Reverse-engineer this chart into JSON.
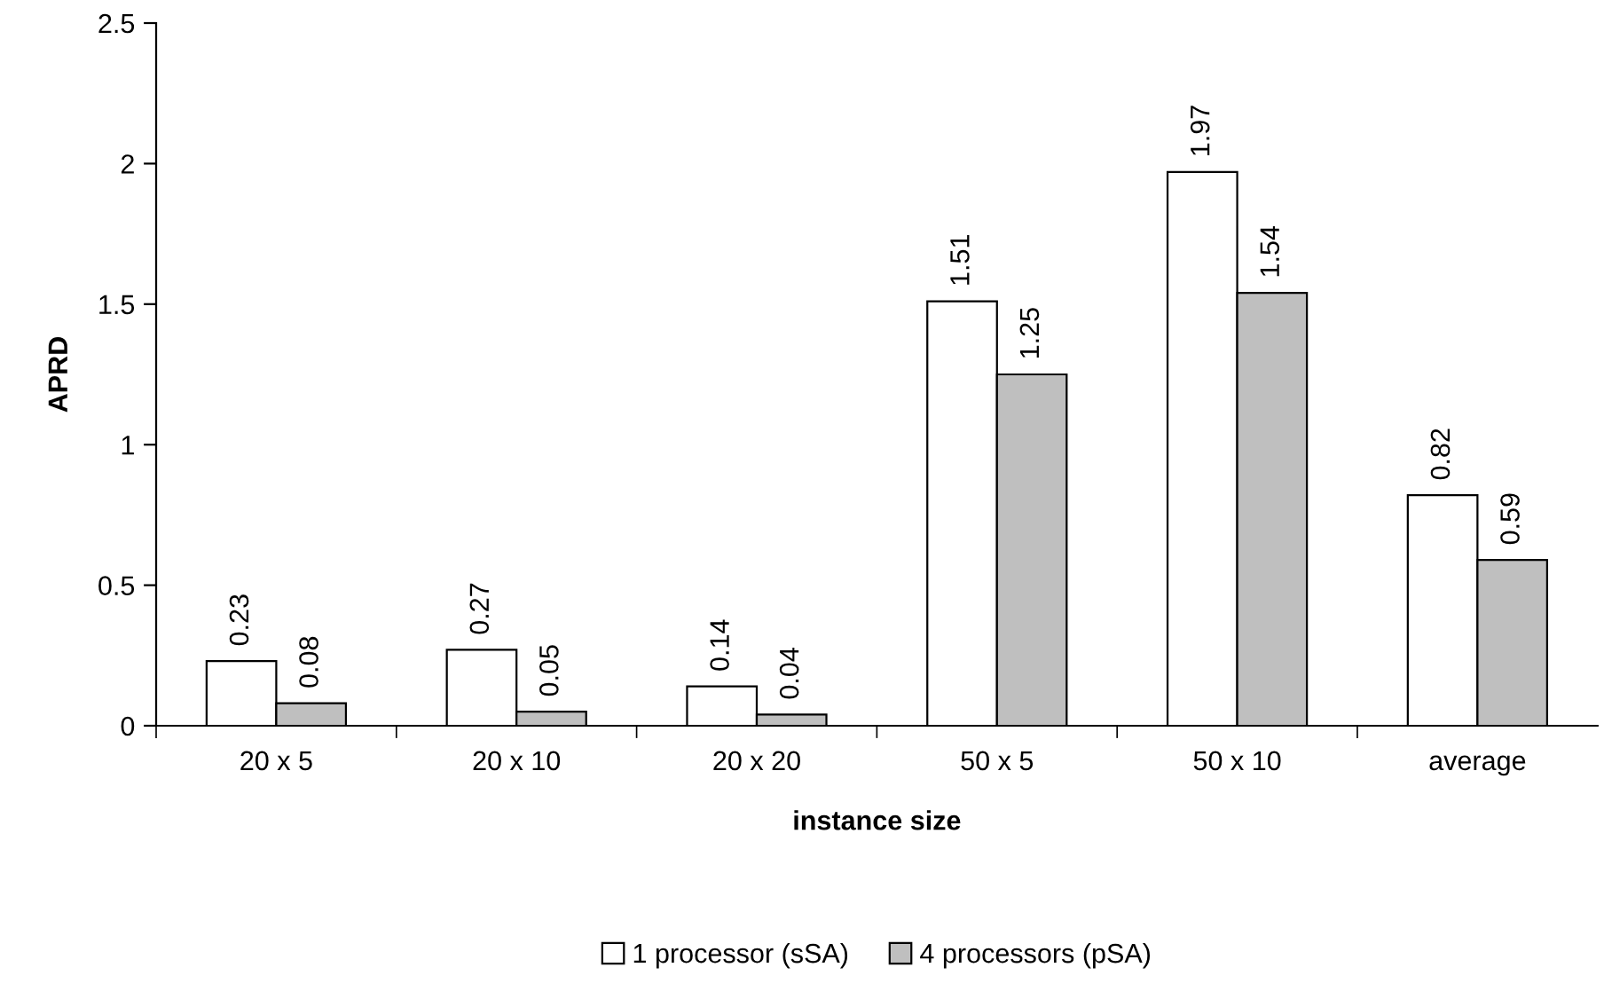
{
  "chart_data": {
    "type": "bar",
    "xlabel": "instance size",
    "ylabel": "APRD",
    "categories": [
      "20 x 5",
      "20 x 10",
      "20 x 20",
      "50 x 5",
      "50 x 10",
      "average"
    ],
    "series": [
      {
        "name": "1 processor (sSA)",
        "color": "#ffffff",
        "values": [
          0.23,
          0.27,
          0.14,
          1.51,
          1.97,
          0.82
        ]
      },
      {
        "name": "4 processors (pSA)",
        "color": "#bfbfbf",
        "values": [
          0.08,
          0.05,
          0.04,
          1.25,
          1.54,
          0.59
        ]
      }
    ],
    "ylim": [
      0,
      2.5
    ],
    "yticks": [
      0,
      0.5,
      1,
      1.5,
      2,
      2.5
    ],
    "data_labels": true,
    "legend": "bottom",
    "grid": false
  }
}
